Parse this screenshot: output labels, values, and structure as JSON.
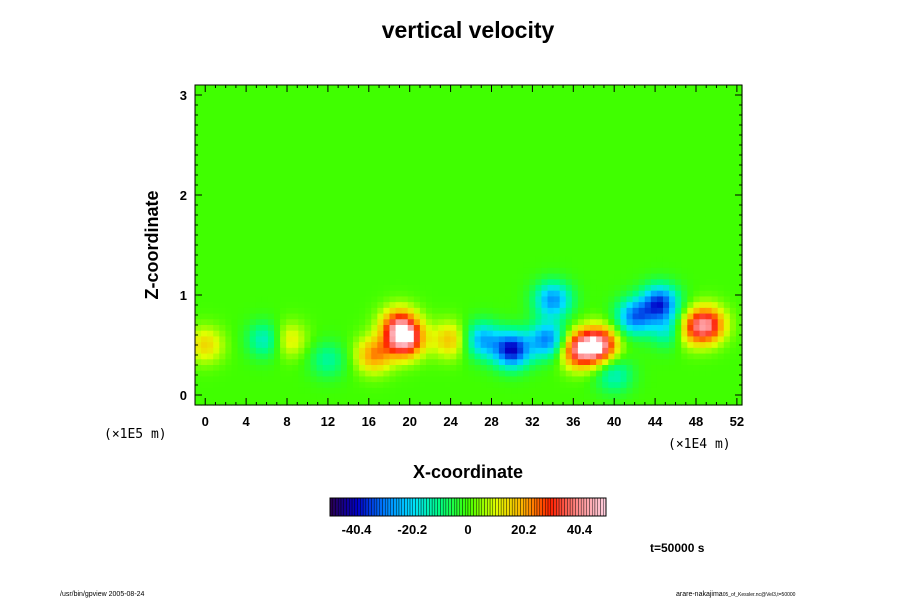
{
  "chart_data": {
    "type": "heatmap",
    "title": "vertical velocity",
    "xlabel": "X-coordinate",
    "ylabel": "Z-coordinate",
    "x_scale_note": "(×1E4 m)",
    "y_scale_note": "(×1E5 m)",
    "xlim": [
      -1,
      52.5
    ],
    "ylim": [
      -0.1,
      3.1
    ],
    "x_ticks": [
      "0",
      "4",
      "8",
      "12",
      "16",
      "20",
      "24",
      "28",
      "32",
      "36",
      "40",
      "44",
      "48",
      "52"
    ],
    "x_tick_values": [
      0,
      4,
      8,
      12,
      16,
      20,
      24,
      28,
      32,
      36,
      40,
      44,
      48,
      52
    ],
    "y_ticks": [
      "0",
      "1",
      "2",
      "3"
    ],
    "y_tick_values": [
      0,
      1,
      2,
      3
    ],
    "colorbar": {
      "labels": [
        "-40.4",
        "-20.2",
        "0",
        "20.2",
        "40.4"
      ],
      "label_values": [
        -40.4,
        -20.2,
        0,
        20.2,
        40.4
      ],
      "range": [
        -50,
        50
      ],
      "colors": [
        "#2a004f",
        "#0000c8",
        "#0080ff",
        "#00e0ff",
        "#00ff80",
        "#40ff00",
        "#e0ff00",
        "#ffb000",
        "#ff2000",
        "#ff9090",
        "#ffd0e0"
      ]
    },
    "background_value": 0,
    "features": [
      {
        "x": 19.5,
        "z": 0.55,
        "value": 40
      },
      {
        "x": 19.0,
        "z": 0.7,
        "value": 28
      },
      {
        "x": 30.0,
        "z": 0.45,
        "value": -40
      },
      {
        "x": 27.0,
        "z": 0.55,
        "value": -25
      },
      {
        "x": 33.5,
        "z": 0.55,
        "value": -30
      },
      {
        "x": 38.5,
        "z": 0.5,
        "value": 42
      },
      {
        "x": 36.5,
        "z": 0.45,
        "value": 35
      },
      {
        "x": 49.0,
        "z": 0.7,
        "value": 38
      },
      {
        "x": 42.0,
        "z": 0.78,
        "value": -30
      },
      {
        "x": 44.5,
        "z": 0.92,
        "value": -35
      },
      {
        "x": 34.0,
        "z": 0.95,
        "value": -28
      },
      {
        "x": 16.5,
        "z": 0.4,
        "value": 22
      },
      {
        "x": 6.0,
        "z": 0.55,
        "value": -18
      },
      {
        "x": 8.0,
        "z": 0.55,
        "value": 15
      },
      {
        "x": 0.0,
        "z": 0.5,
        "value": 15
      },
      {
        "x": 45.5,
        "z": 0.65,
        "value": -20
      },
      {
        "x": 47.0,
        "z": 0.65,
        "value": 18
      },
      {
        "x": 40.0,
        "z": 0.2,
        "value": -15
      },
      {
        "x": 24.0,
        "z": 0.55,
        "value": 18
      },
      {
        "x": 12.0,
        "z": 0.35,
        "value": -12
      }
    ],
    "time_label": "t=50000 s"
  },
  "footer": {
    "left": "/usr/bin/gpview 2005-08-24",
    "right": "arare-nakajima",
    "right_small": "05_of_Kessler.nc@Vel3,t=50000"
  }
}
